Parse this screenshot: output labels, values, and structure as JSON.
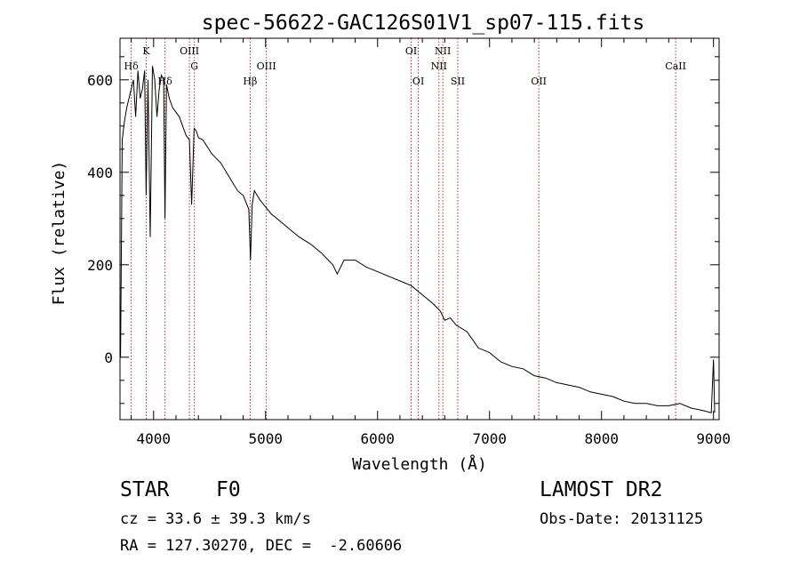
{
  "chart_data": {
    "type": "line",
    "title": "spec-56622-GAC126S01V1_sp07-115.fits",
    "xlabel": "Wavelength (Å)",
    "ylabel": "Flux (relative)",
    "xlim": [
      3700,
      9050
    ],
    "ylim": [
      -135,
      690
    ],
    "x_ticks": [
      4000,
      5000,
      6000,
      7000,
      8000,
      9000
    ],
    "x_tick_labels": [
      "4000",
      "5000",
      "6000",
      "7000",
      "8000",
      "9000"
    ],
    "y_ticks": [
      0,
      200,
      400,
      600
    ],
    "y_tick_labels": [
      "0",
      "200",
      "400",
      "600"
    ],
    "grid": false,
    "line_color": "#000000",
    "marker_color": "#b03030",
    "spectral_lines": [
      {
        "label": "Hδ",
        "x": 3800,
        "label_row": 2
      },
      {
        "label": "K",
        "x": 3934,
        "label_row": 1
      },
      {
        "label": "Hδ",
        "x": 4102,
        "label_row": 3
      },
      {
        "label": "OIII",
        "x": 4320,
        "label_row": 1
      },
      {
        "label": "G",
        "x": 4364,
        "label_row": 2
      },
      {
        "label": "Hβ",
        "x": 4862,
        "label_row": 3
      },
      {
        "label": "OIII",
        "x": 5007,
        "label_row": 2
      },
      {
        "label": "OI",
        "x": 6300,
        "label_row": 1
      },
      {
        "label": "OI",
        "x": 6364,
        "label_row": 3
      },
      {
        "label": "NII",
        "x": 6548,
        "label_row": 2
      },
      {
        "label": "NII",
        "x": 6583,
        "label_row": 1
      },
      {
        "label": "SII",
        "x": 6716,
        "label_row": 3
      },
      {
        "label": "OII",
        "x": 7440,
        "label_row": 3
      },
      {
        "label": "CaII",
        "x": 8662,
        "label_row": 2
      }
    ],
    "series": [
      {
        "x": [
          3705,
          3720,
          3740,
          3760,
          3780,
          3800,
          3820,
          3840,
          3860,
          3880,
          3900,
          3920,
          3933,
          3950,
          3970,
          3990,
          4010,
          4030,
          4050,
          4070,
          4090,
          4102,
          4115,
          4140,
          4170,
          4200,
          4230,
          4260,
          4290,
          4320,
          4340,
          4362,
          4380,
          4400,
          4440,
          4480,
          4520,
          4560,
          4600,
          4650,
          4700,
          4750,
          4800,
          4850,
          4865,
          4880,
          4900,
          4950,
          5000,
          5050,
          5100,
          5150,
          5200,
          5300,
          5400,
          5500,
          5600,
          5640,
          5700,
          5800,
          5900,
          6000,
          6100,
          6200,
          6300,
          6400,
          6500,
          6560,
          6600,
          6650,
          6700,
          6800,
          6900,
          7000,
          7100,
          7200,
          7300,
          7400,
          7500,
          7600,
          7700,
          7800,
          7900,
          8000,
          8100,
          8200,
          8300,
          8400,
          8500,
          8600,
          8700,
          8800,
          8900,
          8980,
          9000,
          9010
        ],
        "y": [
          0,
          470,
          510,
          540,
          560,
          580,
          600,
          520,
          620,
          560,
          580,
          620,
          350,
          600,
          260,
          630,
          600,
          520,
          580,
          610,
          600,
          300,
          590,
          560,
          540,
          530,
          520,
          500,
          480,
          470,
          330,
          495,
          490,
          475,
          470,
          455,
          440,
          430,
          420,
          400,
          380,
          360,
          350,
          320,
          210,
          330,
          360,
          340,
          325,
          310,
          300,
          290,
          280,
          260,
          245,
          225,
          200,
          180,
          210,
          210,
          195,
          185,
          175,
          165,
          155,
          135,
          115,
          100,
          80,
          85,
          70,
          55,
          20,
          10,
          -10,
          -20,
          -25,
          -40,
          -45,
          -55,
          -60,
          -65,
          -75,
          -80,
          -85,
          -95,
          -100,
          -100,
          -105,
          -105,
          -100,
          -110,
          -115,
          -120,
          -5,
          -120
        ]
      }
    ]
  },
  "info": {
    "object_class": "STAR",
    "subclass": "F0",
    "survey": "LAMOST DR2",
    "cz": "cz = 33.6 ± 39.3 km/s",
    "obs_date": "Obs-Date: 20131125",
    "coords": "RA = 127.30270, DEC =  -2.60606"
  }
}
